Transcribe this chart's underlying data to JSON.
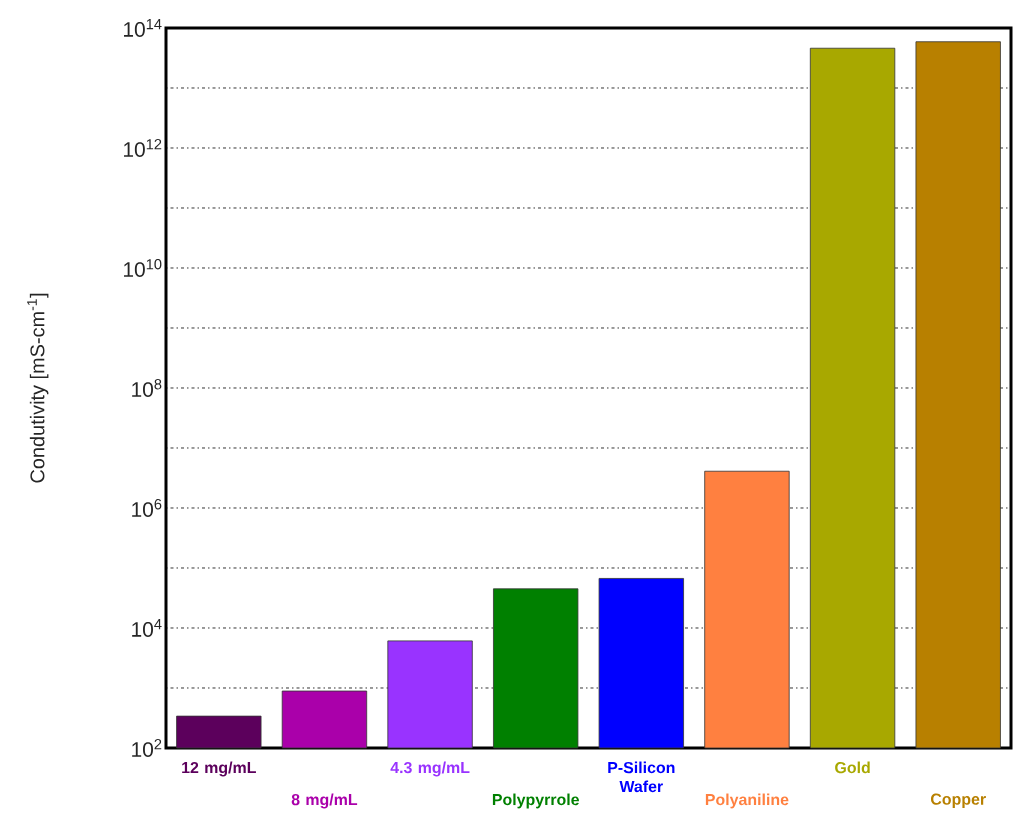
{
  "chart_data": {
    "type": "bar",
    "ylabel": "Condutivity [mS-cm$^{-1}$]",
    "categories": [
      "12 mg/mL",
      "8 mg/mL",
      "4.3 mg/mL",
      "Polypyrrole",
      "P-Silicon Wafer",
      "Polyaniline",
      "Gold",
      "Copper"
    ],
    "values": [
      340,
      890,
      6100,
      45000,
      67000,
      4100000,
      46000000000000,
      59000000000000
    ],
    "colors": [
      "#5c005c",
      "#aa00aa",
      "#9933ff",
      "#008000",
      "#0000ff",
      "#ff8040",
      "#a8a800",
      "#b88000"
    ],
    "log": "y",
    "ylim": [
      100,
      100000000000000
    ],
    "yticks": [
      {
        "value": 100,
        "label": "10$^{2}$"
      },
      {
        "value": 1000,
        "label": null
      },
      {
        "value": 10000,
        "label": "10$^{4}$"
      },
      {
        "value": 100000,
        "label": null
      },
      {
        "value": 1000000,
        "label": "10$^{6}$"
      },
      {
        "value": 10000000,
        "label": null
      },
      {
        "value": 100000000,
        "label": "10$^{8}$"
      },
      {
        "value": 1000000000,
        "label": null
      },
      {
        "value": 10000000000,
        "label": "10$^{10}$"
      },
      {
        "value": 100000000000,
        "label": null
      },
      {
        "value": 1000000000000,
        "label": "10$^{12}$"
      },
      {
        "value": 10000000000000,
        "label": null
      },
      {
        "value": 100000000000000,
        "label": "10$^{14}$"
      }
    ],
    "grid": "y"
  }
}
